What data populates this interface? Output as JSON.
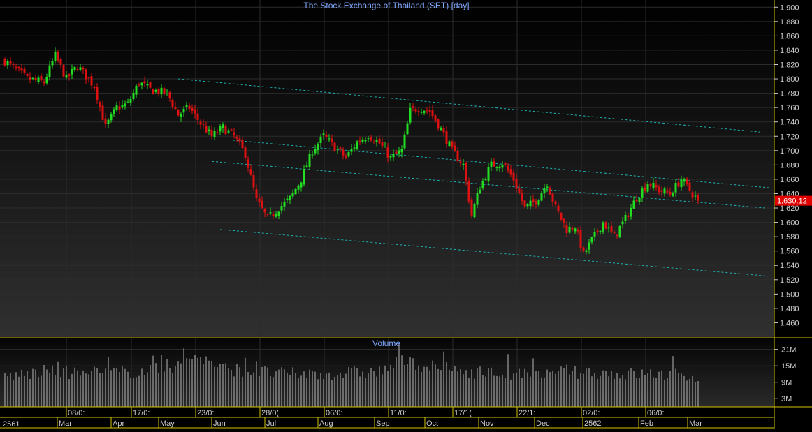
{
  "app": {
    "price_title": "The Stock Exchange of Thailand (SET) [day]",
    "volume_title": "Volume",
    "bottom_left_label": "2561"
  },
  "colors": {
    "background": "#000000",
    "grid": "#2c2c2c",
    "divider": "#d4c200",
    "up": "#22dd22",
    "down": "#dd1111",
    "trendline": "#1fb3b3",
    "title": "#7fa7ff",
    "axis_text": "#cccccc",
    "volume_bar": "#b8b8b8",
    "last_price_bg": "#e00000"
  },
  "chart_data": {
    "type": "candlestick",
    "title": "The Stock Exchange of Thailand (SET) [day]",
    "ylim": [
      1440,
      1910
    ],
    "y_ticks": [
      1460,
      1480,
      1500,
      1520,
      1540,
      1560,
      1580,
      1600,
      1620,
      1640,
      1660,
      1680,
      1700,
      1720,
      1740,
      1760,
      1780,
      1800,
      1820,
      1840,
      1860,
      1880,
      1900
    ],
    "last_price": "1,630.12",
    "last_price_value": 1630.12,
    "x_date_labels": [
      "08/0:",
      "17/0:",
      "23/0:",
      "28/0(",
      "06/0:",
      "11/0:",
      "17/1(",
      "22/1:",
      "02/0:",
      "06/0:"
    ],
    "x_month_labels": [
      "Mar",
      "Apr",
      "May",
      "Jun",
      "Jul",
      "Aug",
      "Sep",
      "Oct",
      "Nov",
      "Dec",
      "2562",
      "Feb",
      "Mar"
    ],
    "anchors": [
      [
        0,
        1825
      ],
      [
        8,
        1800
      ],
      [
        14,
        1795
      ],
      [
        18,
        1833
      ],
      [
        22,
        1800
      ],
      [
        26,
        1818
      ],
      [
        32,
        1790
      ],
      [
        36,
        1733
      ],
      [
        40,
        1760
      ],
      [
        44,
        1765
      ],
      [
        48,
        1795
      ],
      [
        52,
        1785
      ],
      [
        58,
        1780
      ],
      [
        62,
        1750
      ],
      [
        66,
        1760
      ],
      [
        70,
        1738
      ],
      [
        74,
        1720
      ],
      [
        78,
        1732
      ],
      [
        82,
        1720
      ],
      [
        86,
        1695
      ],
      [
        90,
        1630
      ],
      [
        94,
        1605
      ],
      [
        98,
        1620
      ],
      [
        102,
        1633
      ],
      [
        106,
        1660
      ],
      [
        110,
        1700
      ],
      [
        114,
        1720
      ],
      [
        118,
        1705
      ],
      [
        122,
        1690
      ],
      [
        126,
        1712
      ],
      [
        130,
        1722
      ],
      [
        134,
        1710
      ],
      [
        138,
        1690
      ],
      [
        142,
        1700
      ],
      [
        145,
        1755
      ],
      [
        148,
        1760
      ],
      [
        152,
        1755
      ],
      [
        156,
        1730
      ],
      [
        160,
        1700
      ],
      [
        164,
        1680
      ],
      [
        167,
        1610
      ],
      [
        170,
        1650
      ],
      [
        174,
        1680
      ],
      [
        178,
        1683
      ],
      [
        182,
        1660
      ],
      [
        186,
        1620
      ],
      [
        190,
        1630
      ],
      [
        194,
        1655
      ],
      [
        197,
        1620
      ],
      [
        201,
        1590
      ],
      [
        204,
        1595
      ],
      [
        207,
        1555
      ],
      [
        210,
        1575
      ],
      [
        214,
        1600
      ],
      [
        218,
        1580
      ],
      [
        222,
        1605
      ],
      [
        226,
        1635
      ],
      [
        230,
        1655
      ],
      [
        234,
        1645
      ],
      [
        238,
        1640
      ],
      [
        242,
        1660
      ],
      [
        245,
        1645
      ],
      [
        248,
        1630.12
      ]
    ],
    "trendlines": [
      {
        "x": [
          62,
          270
        ],
        "y": [
          1800,
          1726
        ]
      },
      {
        "x": [
          80,
          274
        ],
        "y": [
          1715,
          1648
        ]
      },
      {
        "x": [
          74,
          272
        ],
        "y": [
          1685,
          1620
        ]
      },
      {
        "x": [
          77,
          273
        ],
        "y": [
          1590,
          1525
        ]
      }
    ],
    "volume_ylim": [
      0,
      25
    ],
    "volume_unit": "M",
    "volume_ticks": [
      {
        "v": 3,
        "label": "3M"
      },
      {
        "v": 9,
        "label": "9M"
      },
      {
        "v": 15,
        "label": "15M"
      },
      {
        "v": 21,
        "label": "21M"
      }
    ],
    "volume_anchors": [
      [
        0,
        11
      ],
      [
        15,
        13
      ],
      [
        30,
        12
      ],
      [
        50,
        13
      ],
      [
        62,
        15
      ],
      [
        68,
        19
      ],
      [
        78,
        14
      ],
      [
        88,
        13
      ],
      [
        100,
        12
      ],
      [
        115,
        12
      ],
      [
        135,
        13
      ],
      [
        142,
        17
      ],
      [
        150,
        15
      ],
      [
        165,
        13
      ],
      [
        180,
        12
      ],
      [
        195,
        11
      ],
      [
        207,
        13
      ],
      [
        220,
        12
      ],
      [
        235,
        12
      ],
      [
        248,
        11
      ]
    ]
  }
}
